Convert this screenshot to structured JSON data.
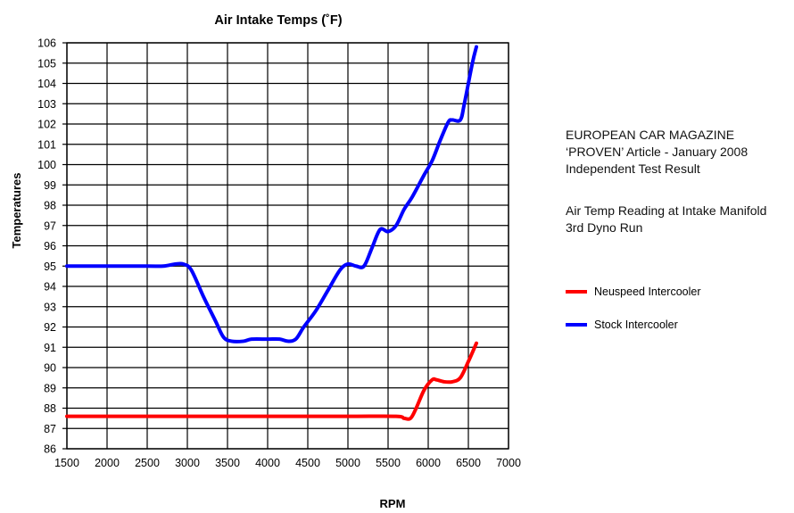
{
  "chart_data": {
    "type": "line",
    "title": "Air Intake Temps (˚F)",
    "xlabel": "RPM",
    "ylabel": "Temperatures",
    "xlim": [
      1500,
      7000
    ],
    "ylim": [
      86,
      106
    ],
    "xticks": [
      "1500",
      "2000",
      "2500",
      "3000",
      "3500",
      "4000",
      "4500",
      "5000",
      "5500",
      "6000",
      "6500",
      "7000"
    ],
    "yticks": [
      "86",
      "87",
      "88",
      "89",
      "90",
      "91",
      "92",
      "93",
      "94",
      "95",
      "96",
      "97",
      "98",
      "99",
      "100",
      "101",
      "102",
      "103",
      "104",
      "105",
      "106"
    ],
    "grid": true,
    "legend_position": "right",
    "series": [
      {
        "name": "Neuspeed Intercooler",
        "color": "#ff0000",
        "x": [
          1500,
          2000,
          3000,
          4000,
          5000,
          5600,
          5700,
          5780,
          5850,
          5950,
          6050,
          6100,
          6200,
          6300,
          6400,
          6500,
          6600
        ],
        "y": [
          87.6,
          87.6,
          87.6,
          87.6,
          87.6,
          87.6,
          87.5,
          87.5,
          88.0,
          88.9,
          89.4,
          89.4,
          89.3,
          89.3,
          89.5,
          90.3,
          91.2
        ]
      },
      {
        "name": "Stock Intercooler",
        "color": "#0000ff",
        "x": [
          1500,
          2000,
          2500,
          2700,
          2850,
          2950,
          3050,
          3200,
          3350,
          3450,
          3550,
          3700,
          3800,
          4000,
          4150,
          4250,
          4350,
          4450,
          4600,
          4750,
          4900,
          5000,
          5100,
          5200,
          5300,
          5400,
          5500,
          5600,
          5700,
          5800,
          5950,
          6050,
          6150,
          6250,
          6300,
          6400,
          6450,
          6550,
          6600
        ],
        "y": [
          95.0,
          95.0,
          95.0,
          95.0,
          95.1,
          95.1,
          94.8,
          93.5,
          92.3,
          91.5,
          91.3,
          91.3,
          91.4,
          91.4,
          91.4,
          91.3,
          91.4,
          92.0,
          92.8,
          93.8,
          94.8,
          95.1,
          95.0,
          95.0,
          95.9,
          96.8,
          96.7,
          97.0,
          97.8,
          98.4,
          99.5,
          100.2,
          101.2,
          102.1,
          102.2,
          102.2,
          103.0,
          105.0,
          105.8
        ]
      }
    ],
    "notes": [
      "EUROPEAN CAR MAGAZINE",
      "‘PROVEN’ Article - January 2008",
      "Independent Test Result",
      "Air Temp Reading at Intake Manifold",
      "3rd Dyno Run"
    ]
  }
}
